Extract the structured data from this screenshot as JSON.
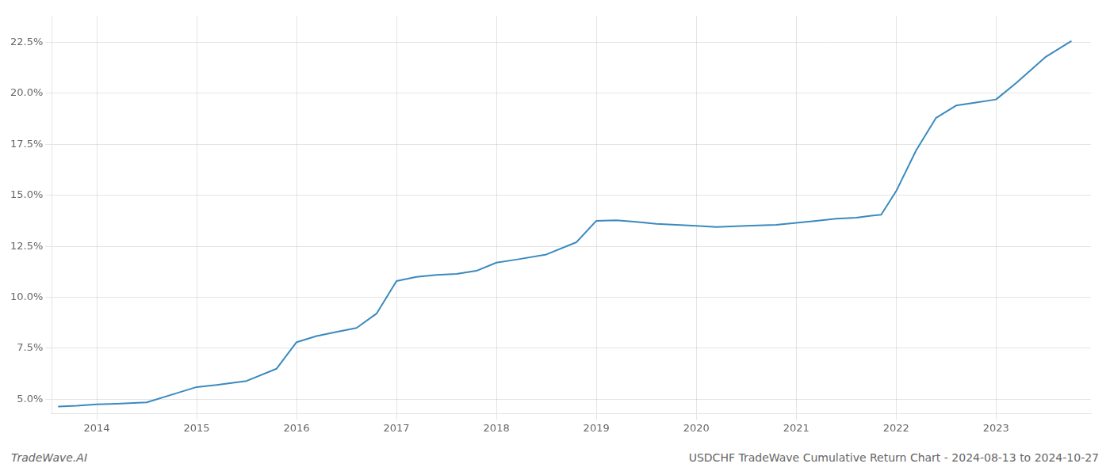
{
  "chart_data": {
    "type": "line",
    "x": [
      2013.62,
      2013.8,
      2014.0,
      2014.2,
      2014.5,
      2014.8,
      2015.0,
      2015.2,
      2015.5,
      2015.8,
      2016.0,
      2016.2,
      2016.4,
      2016.6,
      2016.8,
      2017.0,
      2017.2,
      2017.4,
      2017.6,
      2017.8,
      2018.0,
      2018.2,
      2018.5,
      2018.8,
      2019.0,
      2019.2,
      2019.4,
      2019.6,
      2019.8,
      2020.0,
      2020.2,
      2020.5,
      2020.8,
      2021.0,
      2021.2,
      2021.4,
      2021.6,
      2021.75,
      2021.85,
      2022.0,
      2022.2,
      2022.4,
      2022.6,
      2022.8,
      2023.0,
      2023.2,
      2023.5,
      2023.75
    ],
    "values": [
      4.65,
      4.68,
      4.75,
      4.78,
      4.85,
      5.3,
      5.6,
      5.7,
      5.9,
      6.5,
      7.8,
      8.1,
      8.3,
      8.5,
      9.2,
      10.8,
      11.0,
      11.1,
      11.15,
      11.3,
      11.7,
      11.85,
      12.1,
      12.7,
      13.75,
      13.78,
      13.7,
      13.6,
      13.55,
      13.5,
      13.45,
      13.5,
      13.55,
      13.65,
      13.75,
      13.85,
      13.9,
      14.0,
      14.05,
      15.2,
      17.2,
      18.8,
      19.4,
      19.55,
      19.7,
      20.5,
      21.8,
      22.55
    ],
    "color": "#3a8abf",
    "xlim": [
      2013.55,
      2023.95
    ],
    "xticks": [
      2014,
      2015,
      2016,
      2017,
      2018,
      2019,
      2020,
      2021,
      2022,
      2023
    ],
    "ylim": [
      4.3,
      23.8
    ],
    "yticks": [
      {
        "value": 5.0,
        "label": "5.0%"
      },
      {
        "value": 7.5,
        "label": "7.5%"
      },
      {
        "value": 10.0,
        "label": "10.0%"
      },
      {
        "value": 12.5,
        "label": "12.5%"
      },
      {
        "value": 15.0,
        "label": "15.0%"
      },
      {
        "value": 17.5,
        "label": "17.5%"
      },
      {
        "value": 20.0,
        "label": "20.0%"
      },
      {
        "value": 22.5,
        "label": "22.5%"
      }
    ],
    "grid": true,
    "annotations": [
      "TradeWave.AI",
      "USDCHF TradeWave Cumulative Return Chart - 2024-08-13 to 2024-10-27"
    ]
  }
}
